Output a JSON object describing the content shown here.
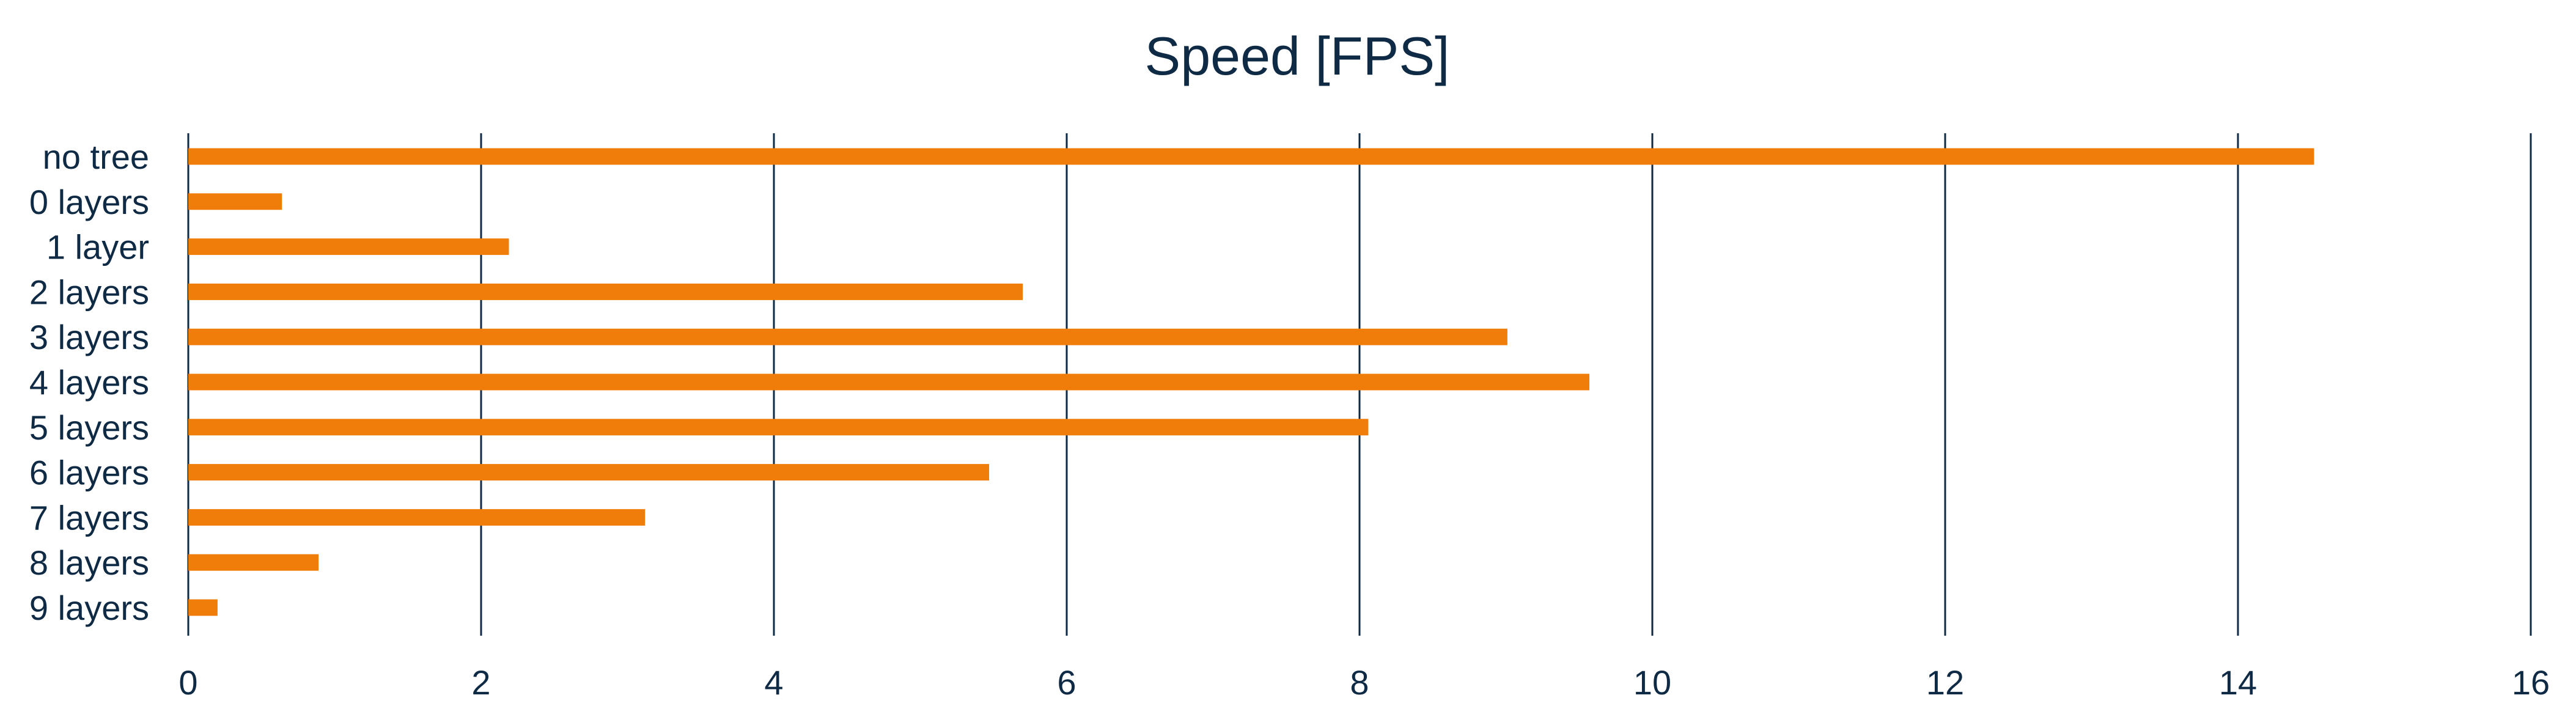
{
  "chart_data": {
    "type": "bar",
    "orientation": "horizontal",
    "title": "Speed [FPS]",
    "xlabel": "",
    "ylabel": "",
    "categories": [
      "no tree",
      "0 layers",
      "1 layer",
      "2 layers",
      "3 layers",
      "4 layers",
      "5 layers",
      "6 layers",
      "7 layers",
      "8 layers",
      "9 layers"
    ],
    "values": [
      14.52,
      0.64,
      2.19,
      5.7,
      9.01,
      9.57,
      8.06,
      5.47,
      3.12,
      0.89,
      0.2
    ],
    "xlim": [
      0,
      16
    ],
    "x_ticks": [
      0,
      2,
      4,
      6,
      8,
      10,
      12,
      14,
      16
    ],
    "tick_labels": [
      "0",
      "2",
      "4",
      "6",
      "8",
      "10",
      "12",
      "14",
      "16"
    ],
    "grid": "vertical",
    "legend": "none",
    "colors": {
      "bar": "#f07d0a",
      "grid": "#0f2a44",
      "text": "#0f2a44"
    }
  }
}
